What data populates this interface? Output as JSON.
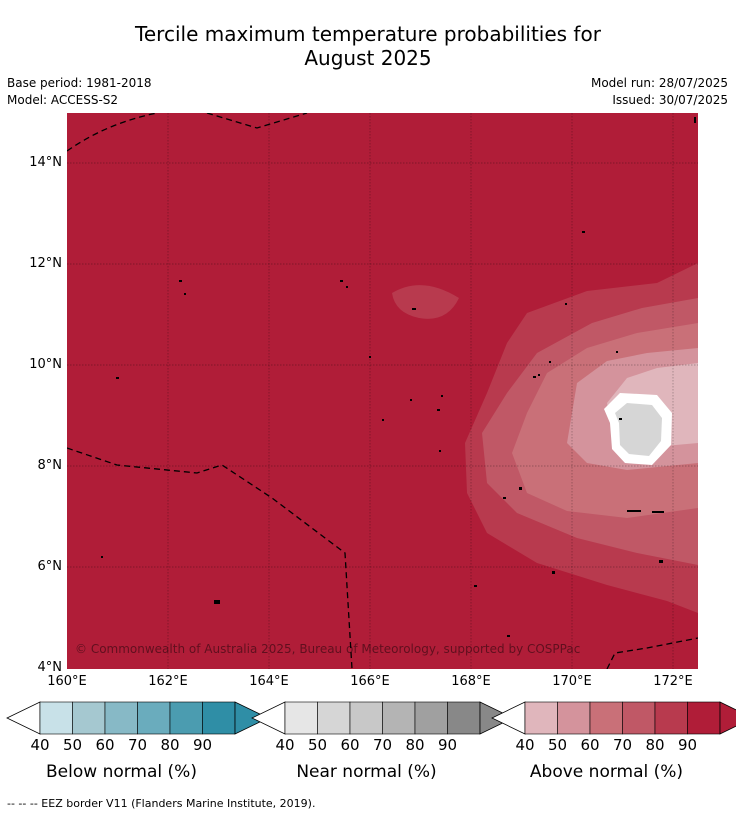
{
  "title_line1": "Tercile maximum temperature probabilities for",
  "title_line2": "August 2025",
  "base_period": "Base period: 1981-2018",
  "model": "Model: ACCESS-S2",
  "model_run": "Model run: 28/07/2025",
  "issued": "Issued: 30/07/2025",
  "credit": "© Commonwealth of Australia 2025, Bureau of Meteorology, supported by COSPPac",
  "y_ticks": [
    "14°N",
    "12°N",
    "10°N",
    "8°N",
    "6°N",
    "4°N"
  ],
  "x_ticks": [
    "160°E",
    "162°E",
    "164°E",
    "166°E",
    "168°E",
    "170°E",
    "172°E"
  ],
  "colorbars": [
    {
      "title": "Below normal (%)",
      "ticks": [
        "40",
        "50",
        "60",
        "70",
        "80",
        "90"
      ],
      "colors": [
        "#c8e1e8",
        "#a5c8d0",
        "#87b9c6",
        "#6aacbd",
        "#4b9cb0",
        "#2f8ea6"
      ]
    },
    {
      "title": "Near normal (%)",
      "ticks": [
        "40",
        "50",
        "60",
        "70",
        "80",
        "90"
      ],
      "colors": [
        "#e6e6e6",
        "#d6d6d6",
        "#c8c8c8",
        "#b4b4b4",
        "#a0a0a0",
        "#888888"
      ]
    },
    {
      "title": "Above normal (%)",
      "ticks": [
        "40",
        "50",
        "60",
        "70",
        "80",
        "90"
      ],
      "colors": [
        "#e0b6bc",
        "#d4939c",
        "#c97078",
        "#c05866",
        "#b83a4e",
        "#b01d38"
      ]
    }
  ],
  "footnote": "--  --  -- EEZ border V11 (Flanders Marine Institute, 2019)."
}
